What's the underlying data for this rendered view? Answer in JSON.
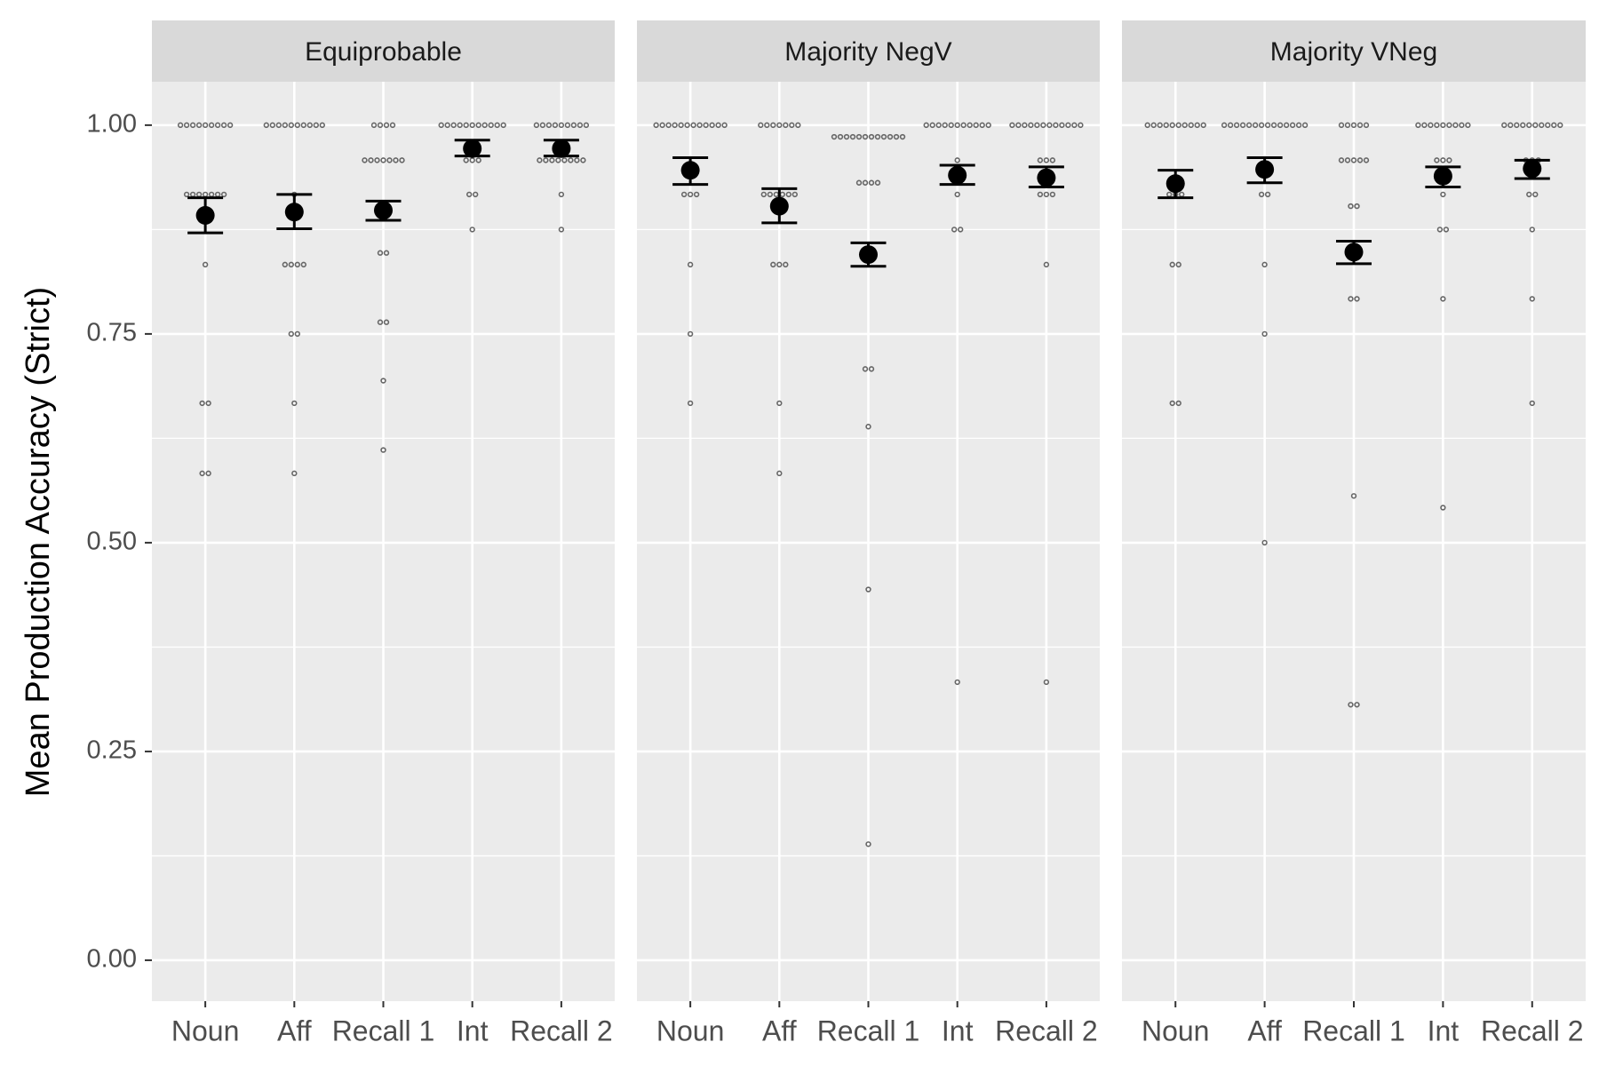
{
  "chart_data": {
    "type": "pointrange",
    "y_label": "Mean Production Accuracy (Strict)",
    "ylim": [
      -0.049,
      1.052
    ],
    "yticks": [
      {
        "value": 0,
        "label": "0.00"
      },
      0.25,
      {
        "value": 0.5,
        "label": "0.50"
      },
      0.75,
      {
        "value": 1,
        "label": "1.00"
      }
    ],
    "grid": true,
    "minor_grid": true,
    "mean_color": "#000000",
    "point_color": "#666666",
    "facets": [
      {
        "title": "Equiprobable",
        "categories": [
          "Noun",
          "Aff",
          "Recall 1",
          "Int",
          "Recall 2"
        ],
        "means": [
          0.892,
          0.896,
          0.898,
          0.972,
          0.972
        ],
        "lower": [
          0.871,
          0.876,
          0.886,
          0.963,
          0.963
        ],
        "upper": [
          0.913,
          0.917,
          0.909,
          0.982,
          0.982
        ],
        "points": [
          [
            1,
            1,
            1,
            1,
            1,
            1,
            1,
            1,
            1,
            0.917,
            0.917,
            0.917,
            0.917,
            0.917,
            0.917,
            0.917,
            0.833,
            0.667,
            0.667,
            0.583,
            0.583
          ],
          [
            1,
            1,
            1,
            1,
            1,
            1,
            1,
            1,
            1,
            1,
            0.917,
            0.833,
            0.833,
            0.833,
            0.833,
            0.75,
            0.75,
            0.667,
            0.583
          ],
          [
            1,
            1,
            1,
            1,
            0.958,
            0.958,
            0.958,
            0.958,
            0.958,
            0.958,
            0.958,
            0.847,
            0.847,
            0.764,
            0.764,
            0.694,
            0.611
          ],
          [
            1,
            1,
            1,
            1,
            1,
            1,
            1,
            1,
            1,
            1,
            1,
            0.958,
            0.958,
            0.958,
            0.917,
            0.917,
            0.875
          ],
          [
            1,
            1,
            1,
            1,
            1,
            1,
            1,
            1,
            1,
            0.958,
            0.958,
            0.958,
            0.958,
            0.958,
            0.958,
            0.958,
            0.958,
            0.917,
            0.875
          ]
        ]
      },
      {
        "title": "Majority NegV",
        "categories": [
          "Noun",
          "Aff",
          "Recall 1",
          "Int",
          "Recall 2"
        ],
        "means": [
          0.946,
          0.903,
          0.845,
          0.94,
          0.937
        ],
        "lower": [
          0.929,
          0.883,
          0.831,
          0.929,
          0.926
        ],
        "upper": [
          0.961,
          0.924,
          0.859,
          0.952,
          0.95
        ],
        "points": [
          [
            1,
            1,
            1,
            1,
            1,
            1,
            1,
            1,
            1,
            1,
            1,
            1,
            0.917,
            0.917,
            0.917,
            0.833,
            0.75,
            0.667
          ],
          [
            1,
            1,
            1,
            1,
            1,
            1,
            1,
            0.917,
            0.917,
            0.917,
            0.917,
            0.917,
            0.917,
            0.833,
            0.833,
            0.833,
            0.667,
            0.583
          ],
          [
            0.986,
            0.986,
            0.986,
            0.986,
            0.986,
            0.986,
            0.986,
            0.986,
            0.986,
            0.986,
            0.986,
            0.986,
            0.931,
            0.931,
            0.931,
            0.931,
            0.708,
            0.708,
            0.639,
            0.444,
            0.139
          ],
          [
            1,
            1,
            1,
            1,
            1,
            1,
            1,
            1,
            1,
            1,
            1,
            0.958,
            0.917,
            0.875,
            0.875,
            0.333
          ],
          [
            1,
            1,
            1,
            1,
            1,
            1,
            1,
            1,
            1,
            1,
            1,
            1,
            0.958,
            0.958,
            0.958,
            0.917,
            0.917,
            0.917,
            0.833,
            0.333
          ]
        ]
      },
      {
        "title": "Majority VNeg",
        "categories": [
          "Noun",
          "Aff",
          "Recall 1",
          "Int",
          "Recall 2"
        ],
        "means": [
          0.93,
          0.947,
          0.848,
          0.939,
          0.948
        ],
        "lower": [
          0.913,
          0.931,
          0.834,
          0.926,
          0.936
        ],
        "upper": [
          0.946,
          0.961,
          0.861,
          0.95,
          0.958
        ],
        "points": [
          [
            1,
            1,
            1,
            1,
            1,
            1,
            1,
            1,
            1,
            1,
            0.917,
            0.917,
            0.917,
            0.833,
            0.833,
            0.667,
            0.667
          ],
          [
            1,
            1,
            1,
            1,
            1,
            1,
            1,
            1,
            1,
            1,
            1,
            1,
            1,
            1,
            0.917,
            0.917,
            0.833,
            0.75,
            0.5
          ],
          [
            1,
            1,
            1,
            1,
            1,
            0.958,
            0.958,
            0.958,
            0.958,
            0.958,
            0.903,
            0.903,
            0.792,
            0.792,
            0.556,
            0.306,
            0.306
          ],
          [
            1,
            1,
            1,
            1,
            1,
            1,
            1,
            1,
            1,
            0.958,
            0.958,
            0.958,
            0.917,
            0.875,
            0.875,
            0.792,
            0.542
          ],
          [
            1,
            1,
            1,
            1,
            1,
            1,
            1,
            1,
            1,
            1,
            0.958,
            0.958,
            0.958,
            0.917,
            0.917,
            0.875,
            0.792,
            0.667
          ]
        ]
      }
    ]
  }
}
